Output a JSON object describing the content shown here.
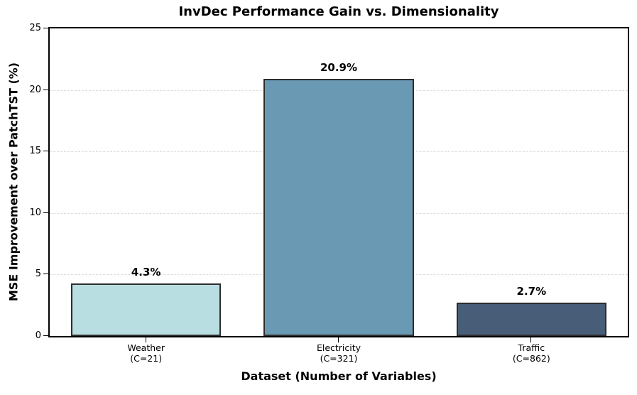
{
  "chart_data": {
    "type": "bar",
    "title": "InvDec Performance Gain vs. Dimensionality",
    "xlabel": "Dataset (Number of Variables)",
    "ylabel": "MSE Improvement over PatchTST (%)",
    "categories": [
      "Weather",
      "Electricity",
      "Traffic"
    ],
    "category_sublabels": [
      "(C=21)",
      "(C=321)",
      "(C=862)"
    ],
    "values": [
      4.3,
      20.9,
      2.7
    ],
    "value_labels": [
      "4.3%",
      "20.9%",
      "2.7%"
    ],
    "bar_colors": [
      "#b9dee1",
      "#6a99b4",
      "#475d78"
    ],
    "bar_edge_color": "#2d2d2d",
    "ylim": [
      0,
      25
    ],
    "yticks": [
      0,
      5,
      10,
      15,
      20,
      25
    ],
    "grid": "horizontal dashed",
    "grid_color": "#dcdcdc",
    "legend": "none",
    "background_color": "#ffffff",
    "text_color": "#000000"
  }
}
